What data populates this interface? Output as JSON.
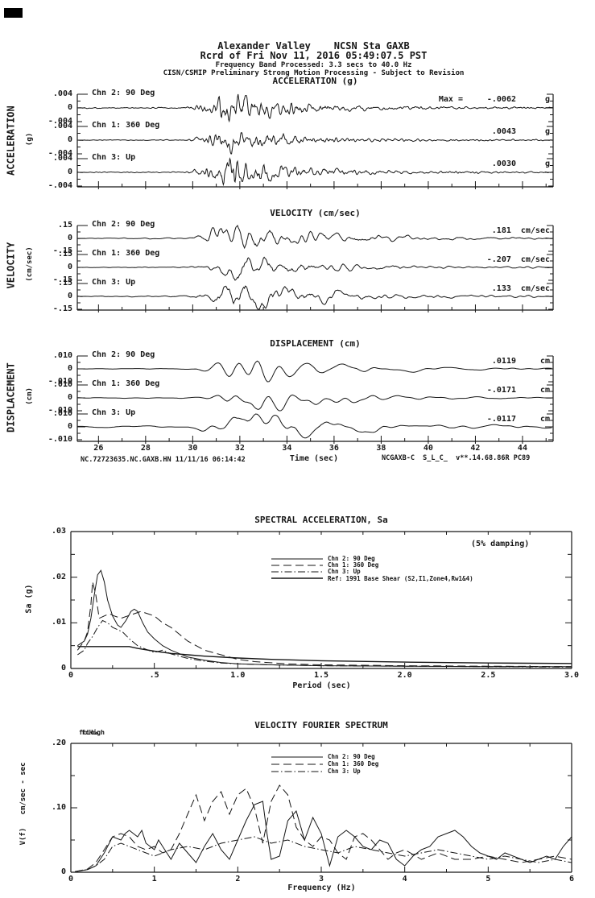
{
  "header": {
    "line1": "Alexander Valley    NCSN Sta GAXB",
    "line2": "Rcrd of Fri Nov 11, 2016 05:49:07.5 PST",
    "line3": "Frequency Band Processed: 3.3 secs to 40.0 Hz",
    "line4": "CISN/CSMIP Preliminary Strong Motion Processing - Subject to Revision"
  },
  "time_axis": {
    "tick_labels": [
      "26",
      "28",
      "30",
      "32",
      "34",
      "36",
      "38",
      "40",
      "42",
      "44"
    ],
    "tick_values": [
      26,
      28,
      30,
      32,
      34,
      36,
      38,
      40,
      42,
      44
    ],
    "label": "Time (sec)",
    "footer_left": "NC.72723635.NC.GAXB.HN 11/11/16 06:14:42",
    "footer_right": "NCGAXB-C  S_L_C_  v**.14.68.86R PC89"
  },
  "colors": {
    "ink": "#161616",
    "background": "#ffffff"
  },
  "chart_data": [
    {
      "id": "acceleration",
      "type": "line",
      "title": "ACCELERATION (g)",
      "axis_label": "ACCELERATION",
      "axis_unit": "(g)",
      "units": "g",
      "xlim": [
        25.1,
        45.3
      ],
      "ylim": [
        -0.004,
        0.004
      ],
      "ytick_labels": [
        ".004",
        "0",
        "-.004"
      ],
      "channels": [
        {
          "name": "Chn 2: 90 Deg",
          "max_prefix": "Max =",
          "max_value": "-.0062",
          "max_unit": "g",
          "peak": -0.0062
        },
        {
          "name": "Chn 1: 360 Deg",
          "max_value": ".0043",
          "max_unit": "g",
          "peak": 0.0043
        },
        {
          "name": "Chn 3: Up",
          "max_value": ".0030",
          "max_unit": "g",
          "peak": 0.003
        }
      ],
      "envelope": [
        [
          25.1,
          0.03
        ],
        [
          29.7,
          0.03
        ],
        [
          30.2,
          0.2
        ],
        [
          30.9,
          0.45
        ],
        [
          31.2,
          1.0
        ],
        [
          31.8,
          0.9
        ],
        [
          32.4,
          0.55
        ],
        [
          33.4,
          0.45
        ],
        [
          34.5,
          0.3
        ],
        [
          36,
          0.2
        ],
        [
          38,
          0.12
        ],
        [
          40,
          0.09
        ],
        [
          42,
          0.07
        ],
        [
          45.3,
          0.05
        ]
      ]
    },
    {
      "id": "velocity",
      "type": "line",
      "title": "VELOCITY (cm/sec)",
      "axis_label": "VELOCITY",
      "axis_unit": "(cm/sec)",
      "units": "cm/sec",
      "xlim": [
        25.1,
        45.3
      ],
      "ylim": [
        -0.15,
        0.15
      ],
      "ytick_labels": [
        ".15",
        "0",
        "-.15"
      ],
      "channels": [
        {
          "name": "Chn 2: 90 Deg",
          "max_value": ".181",
          "max_unit": "cm/sec",
          "peak": 0.181
        },
        {
          "name": "Chn 1: 360 Deg",
          "max_value": "-.207",
          "max_unit": "cm/sec",
          "peak": -0.207
        },
        {
          "name": "Chn 3: Up",
          "max_value": ".133",
          "max_unit": "cm/sec",
          "peak": 0.133
        }
      ],
      "envelope": [
        [
          25.1,
          0.03
        ],
        [
          29.8,
          0.04
        ],
        [
          30.5,
          0.3
        ],
        [
          31.2,
          0.7
        ],
        [
          31.8,
          1.0
        ],
        [
          32.8,
          0.85
        ],
        [
          33.8,
          0.6
        ],
        [
          35,
          0.45
        ],
        [
          36.5,
          0.3
        ],
        [
          38,
          0.2
        ],
        [
          40,
          0.13
        ],
        [
          42,
          0.09
        ],
        [
          45.3,
          0.07
        ]
      ]
    },
    {
      "id": "displacement",
      "type": "line",
      "title": "DISPLACEMENT (cm)",
      "axis_label": "DISPLACEMENT",
      "axis_unit": "(cm)",
      "units": "cm",
      "xlim": [
        25.1,
        45.3
      ],
      "ylim": [
        -0.01,
        0.01
      ],
      "ytick_labels": [
        ".010",
        "0",
        "-.010"
      ],
      "channels": [
        {
          "name": "Chn 2: 90 Deg",
          "max_value": ".0119",
          "max_unit": "cm",
          "peak": 0.0119
        },
        {
          "name": "Chn 1: 360 Deg",
          "max_value": "-.0171",
          "max_unit": "cm",
          "peak": -0.0171
        },
        {
          "name": "Chn 3: Up",
          "max_value": "-.0117",
          "max_unit": "cm",
          "peak": -0.0117
        }
      ],
      "envelope": [
        [
          25.1,
          0.03
        ],
        [
          29.8,
          0.05
        ],
        [
          30.8,
          0.35
        ],
        [
          31.8,
          0.75
        ],
        [
          32.6,
          1.0
        ],
        [
          33.6,
          0.85
        ],
        [
          34.6,
          0.7
        ],
        [
          35.6,
          0.5
        ],
        [
          37,
          0.35
        ],
        [
          38.5,
          0.25
        ],
        [
          40,
          0.18
        ],
        [
          42,
          0.12
        ],
        [
          45.3,
          0.09
        ]
      ]
    },
    {
      "id": "spectral-acceleration",
      "type": "line",
      "title": "SPECTRAL ACCELERATION, Sa",
      "annotation": "(5% damping)",
      "xlabel": "Period (sec)",
      "ylabel": "Sa (g)",
      "xlim": [
        0,
        3.0
      ],
      "ylim": [
        0,
        0.03
      ],
      "xtick_labels": [
        "0",
        ".5",
        "1.0",
        "1.5",
        "2.0",
        "2.5",
        "3.0"
      ],
      "xtick_values": [
        0,
        0.5,
        1.0,
        1.5,
        2.0,
        2.5,
        3.0
      ],
      "ytick_labels": [
        ".03",
        ".02",
        ".01",
        "0"
      ],
      "ytick_values": [
        0.03,
        0.02,
        0.01,
        0
      ],
      "series": [
        {
          "name": "Chn 2: 90 Deg",
          "style": "solid",
          "x": [
            0.04,
            0.06,
            0.08,
            0.1,
            0.12,
            0.14,
            0.16,
            0.18,
            0.2,
            0.22,
            0.25,
            0.28,
            0.3,
            0.33,
            0.36,
            0.38,
            0.4,
            0.43,
            0.46,
            0.5,
            0.55,
            0.6,
            0.7,
            0.8,
            0.9,
            1.0,
            1.2,
            1.5,
            2.0,
            2.5,
            3.0
          ],
          "y": [
            0.005,
            0.0055,
            0.006,
            0.0075,
            0.011,
            0.016,
            0.0205,
            0.0215,
            0.019,
            0.015,
            0.0115,
            0.0095,
            0.009,
            0.0105,
            0.0125,
            0.013,
            0.0125,
            0.01,
            0.008,
            0.0065,
            0.005,
            0.004,
            0.0025,
            0.0018,
            0.0013,
            0.001,
            0.0008,
            0.0006,
            0.0005,
            0.0004,
            0.0004
          ]
        },
        {
          "name": "Chn 1: 360 Deg",
          "style": "longdash",
          "x": [
            0.04,
            0.06,
            0.08,
            0.1,
            0.12,
            0.13,
            0.15,
            0.17,
            0.2,
            0.23,
            0.26,
            0.3,
            0.34,
            0.38,
            0.42,
            0.46,
            0.5,
            0.55,
            0.6,
            0.65,
            0.7,
            0.8,
            0.9,
            1.0,
            1.1,
            1.3,
            1.5,
            2.0,
            2.5,
            3.0
          ],
          "y": [
            0.004,
            0.005,
            0.006,
            0.008,
            0.014,
            0.019,
            0.016,
            0.011,
            0.0115,
            0.012,
            0.0115,
            0.011,
            0.0115,
            0.012,
            0.0125,
            0.012,
            0.0115,
            0.01,
            0.009,
            0.0075,
            0.006,
            0.004,
            0.003,
            0.002,
            0.0015,
            0.001,
            0.0008,
            0.0006,
            0.0005,
            0.0004
          ]
        },
        {
          "name": "Chn 3: Up",
          "style": "dashdot",
          "x": [
            0.04,
            0.06,
            0.08,
            0.1,
            0.13,
            0.16,
            0.19,
            0.22,
            0.25,
            0.28,
            0.31,
            0.35,
            0.4,
            0.45,
            0.5,
            0.55,
            0.6,
            0.7,
            0.8,
            0.9,
            1.0,
            1.2,
            1.5,
            2.0,
            2.5,
            3.0
          ],
          "y": [
            0.003,
            0.0035,
            0.004,
            0.0055,
            0.007,
            0.009,
            0.0105,
            0.01,
            0.009,
            0.0085,
            0.008,
            0.0065,
            0.005,
            0.0042,
            0.0035,
            0.004,
            0.0032,
            0.0022,
            0.0016,
            0.0012,
            0.001,
            0.0008,
            0.0006,
            0.0005,
            0.0004,
            0.0003
          ]
        },
        {
          "name": "Ref: 1991 Base Shear (S2,I1,Zone4,Rw1&4)",
          "style": "solid",
          "emphasis": true,
          "x": [
            0.04,
            0.1,
            0.2,
            0.3,
            0.35,
            0.4,
            0.5,
            0.6,
            0.7,
            0.8,
            1.0,
            1.2,
            1.5,
            2.0,
            2.5,
            3.0
          ],
          "y": [
            0.0048,
            0.0048,
            0.0048,
            0.0048,
            0.0048,
            0.0044,
            0.0038,
            0.0033,
            0.003,
            0.0027,
            0.0023,
            0.002,
            0.0017,
            0.0014,
            0.0012,
            0.0011
          ]
        }
      ]
    },
    {
      "id": "velocity-fourier-spectrum",
      "type": "line",
      "title": "VELOCITY FOURIER SPECTRUM",
      "corner_labels": [
        "fcLow",
        "fcHigh"
      ],
      "xlabel": "Frequency (Hz)",
      "ylabel": "V(f)   cm/sec - sec",
      "xlim": [
        0,
        6
      ],
      "ylim": [
        0,
        0.2
      ],
      "xtick_labels": [
        "0",
        "1",
        "2",
        "3",
        "4",
        "5",
        "6"
      ],
      "xtick_values": [
        0,
        1,
        2,
        3,
        4,
        5,
        6
      ],
      "ytick_labels": [
        ".20",
        ".10",
        "0"
      ],
      "ytick_values": [
        0.2,
        0.1,
        0
      ],
      "series": [
        {
          "name": "Chn 2: 90 Deg",
          "style": "solid",
          "x": [
            0.05,
            0.2,
            0.3,
            0.4,
            0.5,
            0.6,
            0.65,
            0.7,
            0.8,
            0.85,
            0.9,
            1.0,
            1.05,
            1.1,
            1.2,
            1.3,
            1.4,
            1.5,
            1.6,
            1.7,
            1.8,
            1.9,
            2.0,
            2.1,
            2.2,
            2.3,
            2.35,
            2.4,
            2.5,
            2.6,
            2.7,
            2.8,
            2.9,
            3.0,
            3.1,
            3.2,
            3.3,
            3.4,
            3.5,
            3.6,
            3.7,
            3.8,
            3.9,
            4.0,
            4.1,
            4.2,
            4.3,
            4.4,
            4.5,
            4.6,
            4.7,
            4.8,
            4.9,
            5.0,
            5.1,
            5.2,
            5.3,
            5.4,
            5.5,
            5.6,
            5.7,
            5.8,
            5.9,
            6.0
          ],
          "y": [
            0.001,
            0.004,
            0.01,
            0.03,
            0.055,
            0.05,
            0.06,
            0.065,
            0.055,
            0.065,
            0.045,
            0.035,
            0.05,
            0.04,
            0.02,
            0.045,
            0.03,
            0.015,
            0.04,
            0.06,
            0.035,
            0.02,
            0.05,
            0.08,
            0.105,
            0.11,
            0.06,
            0.02,
            0.025,
            0.08,
            0.095,
            0.05,
            0.085,
            0.06,
            0.01,
            0.055,
            0.065,
            0.055,
            0.04,
            0.035,
            0.05,
            0.045,
            0.02,
            0.01,
            0.025,
            0.035,
            0.04,
            0.055,
            0.06,
            0.065,
            0.055,
            0.04,
            0.03,
            0.025,
            0.02,
            0.03,
            0.025,
            0.02,
            0.015,
            0.02,
            0.025,
            0.02,
            0.04,
            0.055
          ]
        },
        {
          "name": "Chn 1: 360 Deg",
          "style": "longdash",
          "x": [
            0.05,
            0.2,
            0.3,
            0.4,
            0.5,
            0.6,
            0.7,
            0.8,
            0.9,
            1.0,
            1.1,
            1.2,
            1.3,
            1.4,
            1.5,
            1.6,
            1.7,
            1.8,
            1.9,
            2.0,
            2.1,
            2.2,
            2.3,
            2.4,
            2.5,
            2.6,
            2.7,
            2.8,
            2.9,
            3.0,
            3.1,
            3.2,
            3.3,
            3.4,
            3.5,
            3.6,
            3.7,
            3.8,
            3.9,
            4.0,
            4.2,
            4.4,
            4.6,
            4.8,
            5.0,
            5.2,
            5.4,
            5.6,
            5.8,
            6.0
          ],
          "y": [
            0.001,
            0.005,
            0.015,
            0.035,
            0.055,
            0.06,
            0.055,
            0.04,
            0.035,
            0.04,
            0.03,
            0.035,
            0.06,
            0.09,
            0.12,
            0.08,
            0.11,
            0.125,
            0.09,
            0.12,
            0.13,
            0.1,
            0.045,
            0.11,
            0.135,
            0.12,
            0.07,
            0.05,
            0.04,
            0.055,
            0.05,
            0.03,
            0.02,
            0.055,
            0.06,
            0.05,
            0.035,
            0.02,
            0.03,
            0.035,
            0.02,
            0.03,
            0.02,
            0.02,
            0.025,
            0.02,
            0.015,
            0.02,
            0.025,
            0.02
          ]
        },
        {
          "name": "Chn 3: Up",
          "style": "dashdot",
          "x": [
            0.05,
            0.2,
            0.3,
            0.4,
            0.5,
            0.6,
            0.7,
            0.8,
            0.9,
            1.0,
            1.2,
            1.4,
            1.6,
            1.8,
            2.0,
            2.2,
            2.4,
            2.6,
            2.8,
            3.0,
            3.2,
            3.4,
            3.6,
            3.8,
            4.0,
            4.2,
            4.4,
            4.6,
            4.8,
            5.0,
            5.2,
            5.4,
            5.6,
            5.8,
            6.0
          ],
          "y": [
            0.001,
            0.004,
            0.01,
            0.02,
            0.04,
            0.045,
            0.04,
            0.035,
            0.03,
            0.025,
            0.035,
            0.04,
            0.035,
            0.045,
            0.05,
            0.055,
            0.045,
            0.05,
            0.04,
            0.035,
            0.03,
            0.04,
            0.035,
            0.03,
            0.025,
            0.03,
            0.035,
            0.03,
            0.025,
            0.02,
            0.025,
            0.02,
            0.015,
            0.02,
            0.015
          ]
        }
      ]
    }
  ]
}
